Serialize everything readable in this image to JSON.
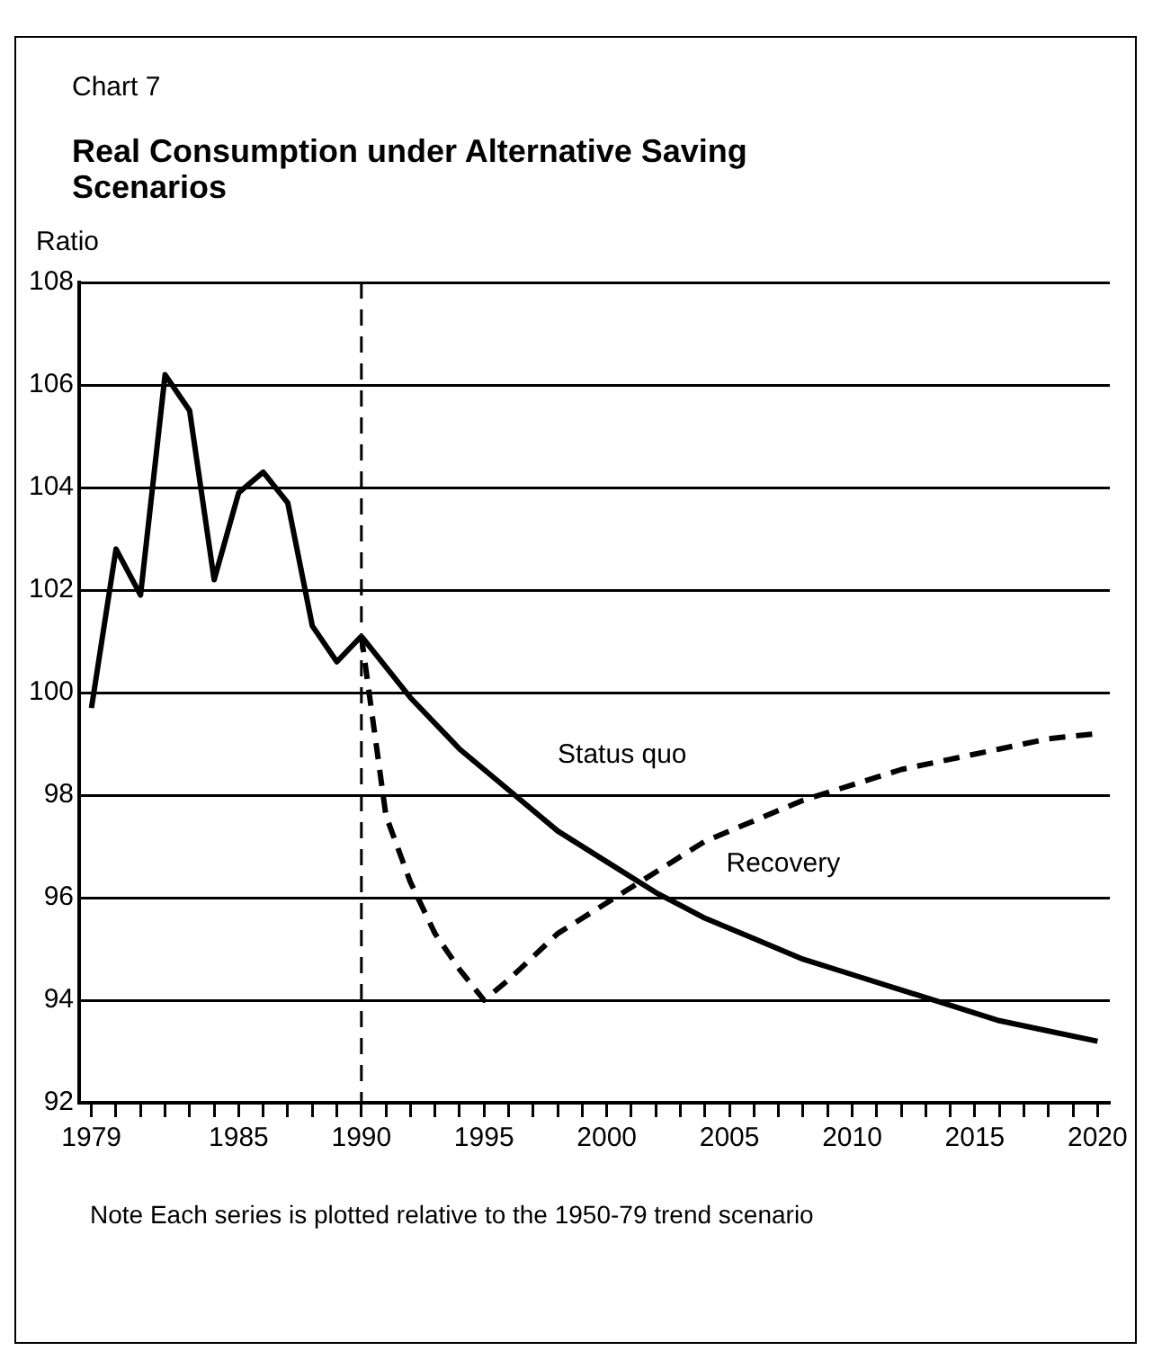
{
  "chart_data": {
    "type": "line",
    "title": "Real Consumption under Alternative Saving Scenarios",
    "subtitle": "Chart 7",
    "ylabel": "Ratio",
    "annotations": [
      "Note  Each series is plotted relative to the 1950-79 trend scenario"
    ],
    "xlim": [
      1978.5,
      2020.5
    ],
    "ylim": [
      92,
      108
    ],
    "yticks": [
      92,
      94,
      96,
      98,
      100,
      102,
      104,
      106,
      108
    ],
    "xticks": [
      1979,
      {
        "value": 1980,
        "label": null
      },
      {
        "value": 1981,
        "label": null
      },
      {
        "value": 1982,
        "label": null
      },
      {
        "value": 1983,
        "label": null
      },
      {
        "value": 1984,
        "label": null
      },
      1985,
      {
        "value": 1986,
        "label": null
      },
      {
        "value": 1987,
        "label": null
      },
      {
        "value": 1988,
        "label": null
      },
      {
        "value": 1989,
        "label": null
      },
      1990,
      {
        "value": 1991,
        "label": null
      },
      {
        "value": 1992,
        "label": null
      },
      {
        "value": 1993,
        "label": null
      },
      {
        "value": 1994,
        "label": null
      },
      1995,
      {
        "value": 1996,
        "label": null
      },
      {
        "value": 1997,
        "label": null
      },
      {
        "value": 1998,
        "label": null
      },
      {
        "value": 1999,
        "label": null
      },
      2000,
      {
        "value": 2001,
        "label": null
      },
      {
        "value": 2002,
        "label": null
      },
      {
        "value": 2003,
        "label": null
      },
      {
        "value": 2004,
        "label": null
      },
      2005,
      {
        "value": 2006,
        "label": null
      },
      {
        "value": 2007,
        "label": null
      },
      {
        "value": 2008,
        "label": null
      },
      {
        "value": 2009,
        "label": null
      },
      2010,
      {
        "value": 2011,
        "label": null
      },
      {
        "value": 2012,
        "label": null
      },
      {
        "value": 2013,
        "label": null
      },
      {
        "value": 2014,
        "label": null
      },
      2015,
      {
        "value": 2016,
        "label": null
      },
      {
        "value": 2017,
        "label": null
      },
      {
        "value": 2018,
        "label": null
      },
      {
        "value": 2019,
        "label": null
      },
      2020
    ],
    "grid": "y",
    "legend": false,
    "marker": "none",
    "ref_lines": [
      {
        "axis": "x",
        "value": 1990,
        "line_style": "dashed",
        "color": "#000000"
      }
    ],
    "series": [
      {
        "color": "#000000",
        "line_style": "solid",
        "x": [
          1979,
          1980,
          1981,
          1982,
          1983,
          1984,
          1985,
          1986,
          1987,
          1988,
          1989,
          1990
        ],
        "values": [
          99.7,
          102.8,
          101.9,
          106.2,
          105.5,
          102.2,
          103.9,
          104.3,
          103.7,
          101.3,
          100.6,
          101.1
        ]
      },
      {
        "name": "Status quo",
        "color": "#000000",
        "line_style": "solid",
        "x": [
          1990,
          1992,
          1994,
          1996,
          1998,
          2000,
          2002,
          2004,
          2006,
          2008,
          2010,
          2012,
          2014,
          2016,
          2018,
          2020
        ],
        "values": [
          101.1,
          99.9,
          98.9,
          98.1,
          97.3,
          96.7,
          96.1,
          95.6,
          95.2,
          94.8,
          94.5,
          94.2,
          93.9,
          93.6,
          93.4,
          93.2
        ]
      },
      {
        "name": "Recovery",
        "color": "#000000",
        "line_style": "dashed",
        "x": [
          1990,
          1991,
          1992,
          1993,
          1994,
          1995,
          1996,
          1998,
          2000,
          2002,
          2004,
          2006,
          2008,
          2010,
          2012,
          2014,
          2016,
          2018,
          2020
        ],
        "values": [
          101.1,
          97.6,
          96.3,
          95.3,
          94.6,
          94.0,
          94.4,
          95.3,
          95.9,
          96.5,
          97.1,
          97.5,
          97.9,
          98.2,
          98.5,
          98.7,
          98.9,
          99.1,
          99.2
        ]
      }
    ]
  }
}
